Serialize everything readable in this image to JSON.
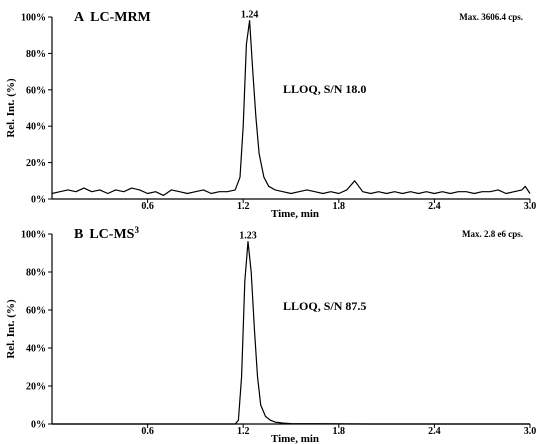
{
  "chart_data": [
    {
      "type": "line",
      "panel_letter": "A",
      "title": "LC-MRM",
      "max_text": "Max. 3606.4 cps.",
      "annotation": "LLOQ, S/N  18.0",
      "xlabel": "Time, min",
      "ylabel": "Rel. Int. (%)",
      "xlim": [
        0.0,
        3.0
      ],
      "ylim": [
        0,
        100
      ],
      "x_ticks": [
        0.6,
        1.2,
        1.8,
        2.4,
        3.0
      ],
      "x_tick_labels": [
        "0.6",
        "1.2",
        "1.8",
        "2.4",
        "3.0"
      ],
      "y_ticks": [
        0,
        20,
        40,
        60,
        80,
        100
      ],
      "y_tick_labels": [
        "0%",
        "20%",
        "40%",
        "60%",
        "80%",
        "100%"
      ],
      "peak_label": "1.24",
      "peak_time": 1.24,
      "series": [
        {
          "x": [
            0.0,
            0.05,
            0.1,
            0.15,
            0.2,
            0.25,
            0.3,
            0.35,
            0.4,
            0.45,
            0.5,
            0.55,
            0.6,
            0.65,
            0.7,
            0.75,
            0.8,
            0.85,
            0.9,
            0.95,
            1.0,
            1.05,
            1.1,
            1.15,
            1.18,
            1.2,
            1.22,
            1.24,
            1.26,
            1.28,
            1.3,
            1.33,
            1.36,
            1.4,
            1.45,
            1.5,
            1.55,
            1.6,
            1.65,
            1.7,
            1.75,
            1.8,
            1.85,
            1.9,
            1.95,
            2.0,
            2.05,
            2.1,
            2.15,
            2.2,
            2.25,
            2.3,
            2.35,
            2.4,
            2.45,
            2.5,
            2.55,
            2.6,
            2.65,
            2.7,
            2.75,
            2.8,
            2.85,
            2.9,
            2.95,
            2.97,
            3.0
          ],
          "y": [
            3,
            4,
            5,
            4,
            6,
            4,
            5,
            3,
            5,
            4,
            6,
            5,
            3,
            4,
            2,
            5,
            4,
            3,
            4,
            5,
            3,
            4,
            4,
            5,
            12,
            40,
            85,
            98,
            70,
            45,
            25,
            12,
            7,
            5,
            4,
            3,
            4,
            5,
            4,
            3,
            4,
            3,
            5,
            10,
            4,
            3,
            4,
            3,
            4,
            3,
            4,
            3,
            4,
            3,
            4,
            3,
            4,
            4,
            3,
            4,
            4,
            5,
            3,
            4,
            5,
            7,
            3
          ]
        }
      ]
    },
    {
      "type": "line",
      "panel_letter": "B",
      "title": "LC-MS3",
      "max_text": "Max. 2.8 e6 cps.",
      "annotation": "LLOQ, S/N  87.5",
      "xlabel": "Time, min",
      "ylabel": "Rel. Int. (%)",
      "xlim": [
        0.0,
        3.0
      ],
      "ylim": [
        0,
        100
      ],
      "x_ticks": [
        0.6,
        1.2,
        1.8,
        2.4,
        3.0
      ],
      "x_tick_labels": [
        "0.6",
        "1.2",
        "1.8",
        "2.4",
        "3.0"
      ],
      "y_ticks": [
        0,
        20,
        40,
        60,
        80,
        100
      ],
      "y_tick_labels": [
        "0%",
        "20%",
        "40%",
        "60%",
        "80%",
        "100%"
      ],
      "peak_label": "1.23",
      "peak_time": 1.23,
      "series": [
        {
          "x": [
            0.0,
            0.5,
            1.0,
            1.1,
            1.15,
            1.17,
            1.19,
            1.21,
            1.23,
            1.25,
            1.27,
            1.29,
            1.31,
            1.34,
            1.37,
            1.4,
            1.45,
            1.5,
            2.0,
            2.5,
            3.0
          ],
          "y": [
            0,
            0,
            0,
            0,
            0,
            2,
            25,
            75,
            96,
            80,
            50,
            25,
            10,
            4,
            2,
            1,
            0.5,
            0.2,
            0,
            0,
            0
          ]
        }
      ]
    }
  ]
}
